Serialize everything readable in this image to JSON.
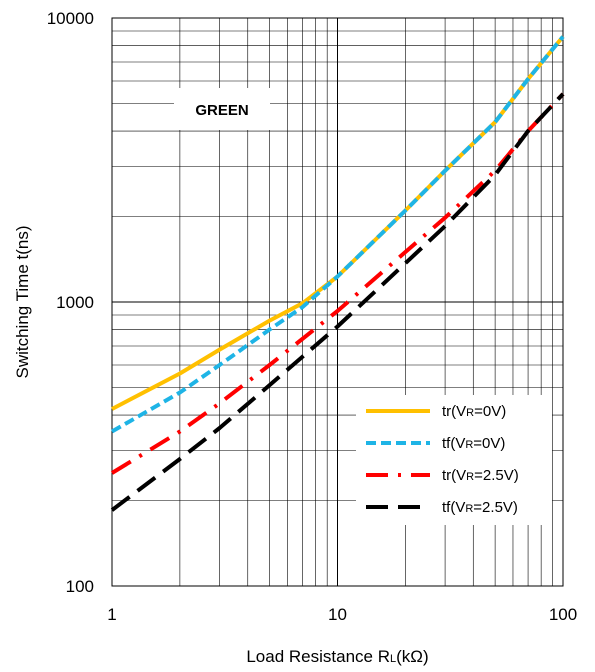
{
  "chart_data": {
    "type": "line",
    "xlabel": {
      "main": "Load Resistance R",
      "sub": "L",
      "suffix": "(kΩ)"
    },
    "ylabel": "Switching Time t(ns)",
    "xscale": "log",
    "yscale": "log",
    "xlim": [
      1,
      100
    ],
    "ylim": [
      100,
      10000
    ],
    "grid": true,
    "legend_position": "bottom-right",
    "x_tick_labels": [
      "1",
      "10",
      "100"
    ],
    "y_tick_labels": [
      "100",
      "1000",
      "10000"
    ],
    "annotation": "GREEN",
    "series": [
      {
        "name": {
          "pre": "tr(V",
          "sub": "R",
          "post": "=0V)"
        },
        "color": "#FFC000",
        "style": "solid",
        "x": [
          1,
          2,
          3,
          5,
          7,
          10,
          20,
          30,
          50,
          70,
          100
        ],
        "y": [
          420,
          560,
          680,
          860,
          990,
          1230,
          2100,
          2900,
          4300,
          6100,
          8600
        ]
      },
      {
        "name": {
          "pre": "tf(V",
          "sub": "R",
          "post": "=0V)"
        },
        "color": "#1EB4E6",
        "style": "short-dash",
        "x": [
          1,
          2,
          3,
          5,
          7,
          10,
          20,
          30,
          50,
          70,
          100
        ],
        "y": [
          350,
          480,
          600,
          800,
          960,
          1230,
          2100,
          2900,
          4300,
          6100,
          8600
        ]
      },
      {
        "name": {
          "pre": "tr(V",
          "sub": "R",
          "post": "=2.5V)"
        },
        "color": "#FF0000",
        "style": "dash-dot",
        "x": [
          1,
          2,
          3,
          5,
          10,
          20,
          30,
          50,
          70,
          100
        ],
        "y": [
          250,
          350,
          440,
          600,
          930,
          1500,
          1980,
          2900,
          4000,
          5400
        ]
      },
      {
        "name": {
          "pre": "tf(V",
          "sub": "R",
          "post": "=2.5V)"
        },
        "color": "#000000",
        "style": "long-dash",
        "x": [
          1,
          2,
          3,
          5,
          10,
          20,
          30,
          50,
          70,
          100
        ],
        "y": [
          185,
          280,
          360,
          510,
          820,
          1370,
          1850,
          2800,
          4000,
          5400
        ]
      }
    ]
  }
}
